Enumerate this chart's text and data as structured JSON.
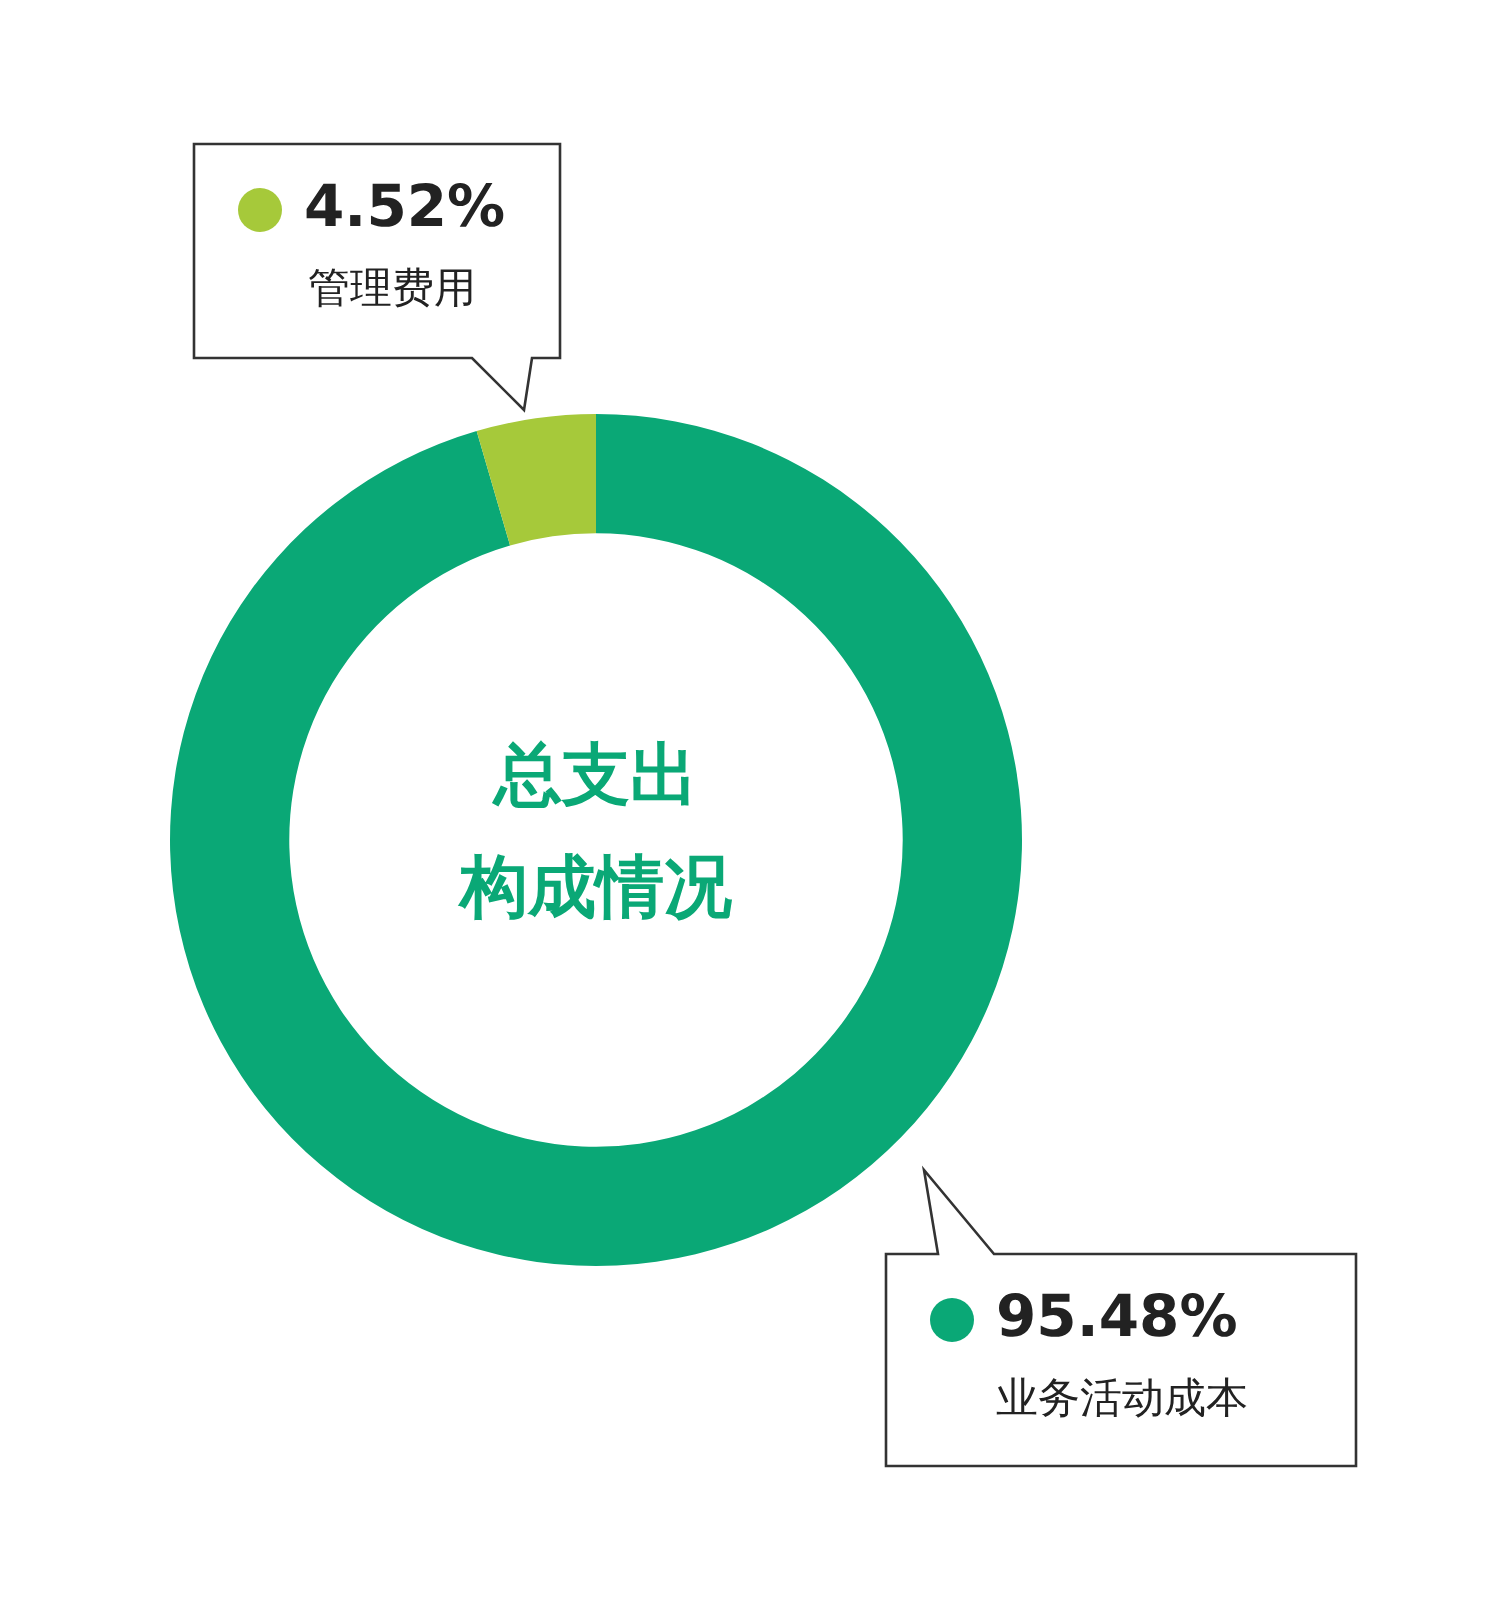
{
  "chart_data": {
    "type": "donut",
    "title": "总支出",
    "subtitle": "构成情况",
    "categories": [
      "业务活动成本",
      "管理费用"
    ],
    "values": [
      95.48,
      4.52
    ],
    "colors": [
      "#0aa876",
      "#a6c93a"
    ],
    "value_labels": [
      "95.48%",
      "4.52%"
    ],
    "legend": false
  }
}
